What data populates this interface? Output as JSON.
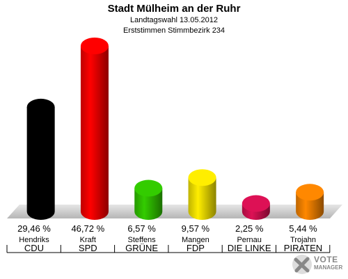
{
  "header": {
    "title": "Stadt Mülheim an der Ruhr",
    "subtitle1": "Landtagswahl 13.05.2012",
    "subtitle2": "Erststimmen Stimmbezirk 234"
  },
  "chart_data": {
    "type": "bar",
    "title": "Stadt Mülheim an der Ruhr",
    "subtitle": "Landtagswahl 13.05.2012 / Erststimmen Stimmbezirk 234",
    "categories": [
      "CDU",
      "SPD",
      "GRÜNE",
      "FDP",
      "DIE LINKE",
      "PIRATEN"
    ],
    "candidates": [
      "Hendriks",
      "Kraft",
      "Steffens",
      "Mangen",
      "Pernau",
      "Trojahn"
    ],
    "values": [
      29.46,
      46.72,
      6.57,
      9.57,
      2.25,
      5.44
    ],
    "value_labels": [
      "29,46 %",
      "46,72 %",
      "6,57 %",
      "9,57 %",
      "2,25 %",
      "5,44 %"
    ],
    "colors": [
      "#000000",
      "#ff0000",
      "#33cc00",
      "#ffee00",
      "#dd1155",
      "#ff8800"
    ],
    "xlabel": "",
    "ylabel": "",
    "grid": false
  },
  "logo": {
    "line1": "VOTE",
    "line2": "MANAGER"
  }
}
